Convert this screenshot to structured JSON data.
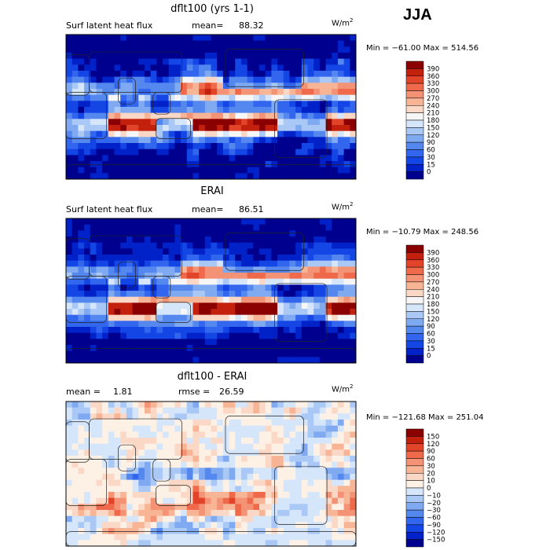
{
  "season": "JJA",
  "units": {
    "base": "W/m",
    "exp": "2"
  },
  "colors": {
    "abs_scale": [
      "#00008f",
      "#0022c8",
      "#1446e6",
      "#3366ee",
      "#5588ee",
      "#7faaf2",
      "#aac8f6",
      "#d6e6fa",
      "#f6f6f6",
      "#fbd8c6",
      "#f8b596",
      "#f39274",
      "#ee6a4a",
      "#e14428",
      "#c4200e",
      "#8b0000"
    ],
    "diff_scale": [
      "#00008f",
      "#0022c8",
      "#1446e6",
      "#3366ee",
      "#5588ee",
      "#7faaf2",
      "#aac8f6",
      "#d6e6fa",
      "#fdf1e6",
      "#fbd8c6",
      "#f8b596",
      "#f39274",
      "#ee6a4a",
      "#e14428",
      "#c4200e",
      "#8b0000"
    ],
    "land_line": "#222222"
  },
  "panels": [
    {
      "title": "dflt100 (yrs 1-1)",
      "left_label": "Surf latent heat flux",
      "stat_label": "mean=",
      "stat_value": "88.32",
      "minmax": "Min = −61.00 Max = 514.56",
      "cb_labels": [
        "390",
        "360",
        "330",
        "300",
        "270",
        "240",
        "210",
        "180",
        "150",
        "120",
        "90",
        "60",
        "30",
        "15",
        "0"
      ]
    },
    {
      "title": "ERAI",
      "left_label": "Surf latent heat flux",
      "stat_label": "mean=",
      "stat_value": "86.51",
      "minmax": "Min = −10.79 Max = 248.56",
      "cb_labels": [
        "390",
        "360",
        "330",
        "300",
        "270",
        "240",
        "210",
        "180",
        "150",
        "120",
        "90",
        "60",
        "30",
        "15",
        "0"
      ]
    },
    {
      "title": "dflt100 - ERAI",
      "left_label": "mean =",
      "left_value": "1.81",
      "stat_label": "rmse =",
      "stat_value": "26.59",
      "minmax": "Min = −121.68 Max = 251.04",
      "cb_labels": [
        "150",
        "120",
        "90",
        "60",
        "30",
        "20",
        "10",
        "0",
        "−10",
        "−20",
        "−30",
        "−60",
        "−90",
        "−120",
        "−150"
      ]
    }
  ],
  "chart_data": [
    {
      "type": "heatmap",
      "title": "dflt100 (yrs 1-1)",
      "variable": "Surf latent heat flux",
      "units": "W/m2",
      "mean": 88.32,
      "min": -61.0,
      "max": 514.56,
      "levels": [
        0,
        15,
        30,
        60,
        90,
        120,
        150,
        180,
        210,
        240,
        270,
        300,
        330,
        360,
        390
      ]
    },
    {
      "type": "heatmap",
      "title": "ERAI",
      "variable": "Surf latent heat flux",
      "units": "W/m2",
      "mean": 86.51,
      "min": -10.79,
      "max": 248.56,
      "levels": [
        0,
        15,
        30,
        60,
        90,
        120,
        150,
        180,
        210,
        240,
        270,
        300,
        330,
        360,
        390
      ]
    },
    {
      "type": "heatmap",
      "title": "dflt100 - ERAI",
      "units": "W/m2",
      "mean": 1.81,
      "rmse": 26.59,
      "min": -121.68,
      "max": 251.04,
      "levels": [
        -150,
        -120,
        -90,
        -60,
        -30,
        -20,
        -10,
        0,
        10,
        20,
        30,
        60,
        90,
        120,
        150
      ]
    }
  ]
}
